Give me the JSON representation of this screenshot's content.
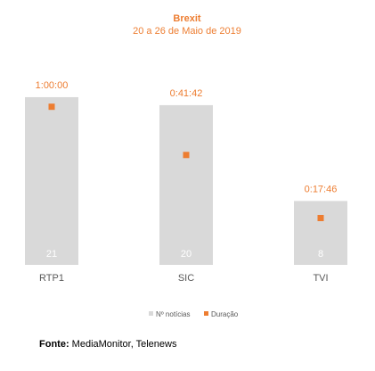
{
  "chart_data": {
    "type": "bar",
    "title": "Brexit",
    "subtitle": "20 a 26 de Maio de 2019",
    "categories": [
      "RTP1",
      "SIC",
      "TVI"
    ],
    "series": [
      {
        "name": "Nº notícias",
        "type": "bar",
        "values": [
          21,
          20,
          8
        ],
        "color": "#D9D9D9",
        "value_labels": [
          "21",
          "20",
          "8"
        ]
      },
      {
        "name": "Duração",
        "type": "marker",
        "values": [
          "1:00:00",
          "0:41:42",
          "0:17:46"
        ],
        "values_seconds": [
          3600,
          2502,
          1066
        ],
        "color": "#ED7D31",
        "value_labels": [
          "1:00:00",
          "0:41:42",
          "0:17:46"
        ]
      }
    ],
    "ylim_bars": [
      0,
      22
    ],
    "ylim_duration_seconds": [
      0,
      4000
    ],
    "legend_position": "bottom",
    "grid": false
  },
  "source": {
    "label": "Fonte:",
    "text": " MediaMonitor, Telenews"
  }
}
